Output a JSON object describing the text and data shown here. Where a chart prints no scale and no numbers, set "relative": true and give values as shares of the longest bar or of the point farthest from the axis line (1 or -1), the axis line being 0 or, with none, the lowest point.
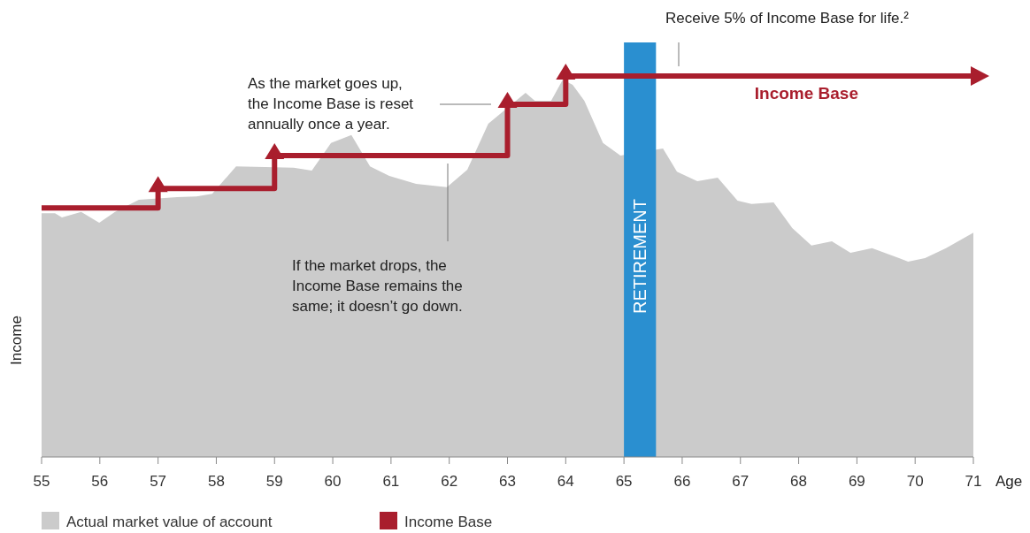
{
  "chart_data": {
    "type": "area",
    "relative": true,
    "xlabel": "Age",
    "ylabel": "Income",
    "xlim": [
      55,
      71
    ],
    "xticks": [
      55,
      56,
      57,
      58,
      59,
      60,
      61,
      62,
      63,
      64,
      65,
      66,
      67,
      68,
      69,
      70,
      71
    ],
    "legend": "bottom",
    "grid": false,
    "series": [
      {
        "name": "Actual market value of account",
        "color": "#cbcbcb",
        "x": [
          55,
          55.23,
          55.35,
          55.68,
          55.99,
          56.26,
          56.67,
          56.98,
          57.33,
          57.66,
          57.93,
          58.34,
          59.0,
          59.33,
          59.64,
          59.97,
          60.32,
          60.64,
          60.97,
          61.43,
          61.96,
          62.31,
          62.67,
          62.98,
          63.31,
          63.47,
          63.75,
          63.95,
          64.12,
          64.32,
          64.64,
          64.94,
          65.5,
          65.67,
          65.91,
          66.26,
          66.61,
          66.95,
          67.19,
          67.57,
          67.89,
          68.22,
          68.57,
          68.89,
          69.26,
          69.88,
          70.17,
          70.53,
          71.0
        ],
        "values": [
          0.64,
          0.64,
          0.629,
          0.643,
          0.615,
          0.643,
          0.675,
          null,
          0.682,
          0.684,
          0.691,
          0.763,
          null,
          0.759,
          0.752,
          0.824,
          0.845,
          0.763,
          0.738,
          0.717,
          0.708,
          0.754,
          0.875,
          null,
          0.956,
          0.935,
          0.935,
          0.991,
          0.977,
          0.935,
          0.824,
          0.791,
          null,
          0.81,
          0.749,
          0.724,
          0.733,
          0.673,
          0.664,
          0.668,
          0.601,
          0.555,
          0.566,
          0.536,
          0.548,
          0.513,
          0.522,
          0.548,
          0.589
        ]
      },
      {
        "name": "Income Base",
        "type": "step",
        "color": "#a91e2d",
        "x": [
          55,
          57,
          59,
          63,
          64,
          71
        ],
        "values": [
          0.654,
          0.705,
          0.791,
          0.926,
          1.0,
          1.0
        ]
      }
    ],
    "bands": [
      {
        "axis": "x",
        "from": 65,
        "to": 65.55,
        "label": "RETIREMENT",
        "color": "#2a8fd0"
      }
    ],
    "annotations": [
      "Receive 5% of Income Base for life.²",
      "As the market goes up,\nthe Income Base is reset\nannually once a year.",
      "If the market drops, the\nIncome Base remains the\nsame; it doesn’t go down."
    ]
  }
}
